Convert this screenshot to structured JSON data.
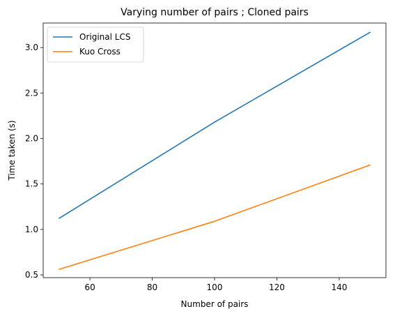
{
  "chart_data": {
    "type": "line",
    "title": "Varying number of pairs ; Cloned pairs",
    "xlabel": "Number of pairs",
    "ylabel": "Time taken (s)",
    "x": [
      50,
      100,
      150
    ],
    "xlim": [
      45,
      155
    ],
    "ylim": [
      0.47,
      3.27
    ],
    "xticks": [
      60,
      80,
      100,
      120,
      140
    ],
    "yticks": [
      0.5,
      1.0,
      1.5,
      2.0,
      2.5,
      3.0
    ],
    "xtick_labels": [
      "60",
      "80",
      "100",
      "120",
      "140"
    ],
    "ytick_labels": [
      "0.5",
      "1.0",
      "1.5",
      "2.0",
      "2.5",
      "3.0"
    ],
    "grid": false,
    "legend_position": "top-left",
    "series": [
      {
        "name": "Original LCS",
        "color": "#1f77b4",
        "values": [
          1.12,
          2.18,
          3.17
        ]
      },
      {
        "name": "Kuo Cross",
        "color": "#ff7f0e",
        "values": [
          0.56,
          1.09,
          1.71
        ]
      }
    ]
  }
}
